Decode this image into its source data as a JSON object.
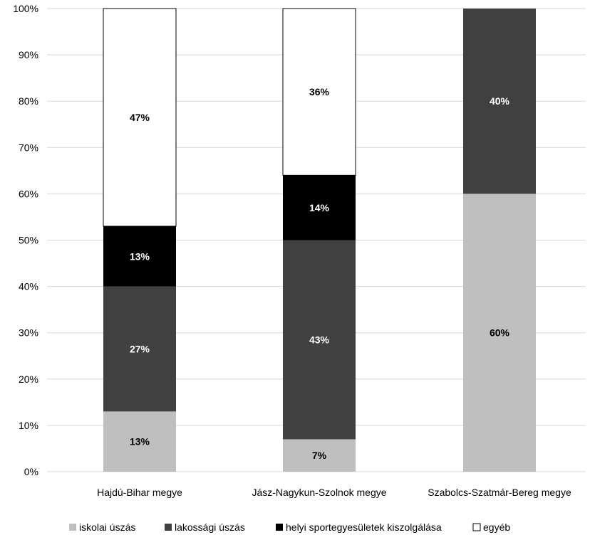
{
  "chart_data": {
    "type": "bar",
    "stacked": true,
    "percent": true,
    "categories": [
      "Hajdú-Bihar megye",
      "Jász-Nagykun-Szolnok megye",
      "Szabolcs-Szatmár-Bereg megye"
    ],
    "series": [
      {
        "name": "iskolai úszás",
        "color": "#bfbfbf",
        "label_color": "#000000",
        "values": [
          13,
          7,
          60
        ],
        "labels": [
          "13%",
          "7%",
          "60%"
        ]
      },
      {
        "name": "lakossági úszás",
        "color": "#404040",
        "label_color": "#ffffff",
        "values": [
          27,
          43,
          40
        ],
        "labels": [
          "27%",
          "43%",
          "40%"
        ]
      },
      {
        "name": "helyi sportegyesületek kiszolgálása",
        "color": "#000000",
        "label_color": "#ffffff",
        "values": [
          13,
          14,
          0
        ],
        "labels": [
          "13%",
          "14%",
          ""
        ]
      },
      {
        "name": "egyéb",
        "color": "#ffffff",
        "label_color": "#000000",
        "values": [
          47,
          36,
          0
        ],
        "labels": [
          "47%",
          "36%",
          ""
        ]
      }
    ],
    "y_ticks": [
      "0%",
      "10%",
      "20%",
      "30%",
      "40%",
      "50%",
      "60%",
      "70%",
      "80%",
      "90%",
      "100%"
    ],
    "ylim": [
      0,
      100
    ],
    "grid": true,
    "legend_position": "bottom"
  }
}
